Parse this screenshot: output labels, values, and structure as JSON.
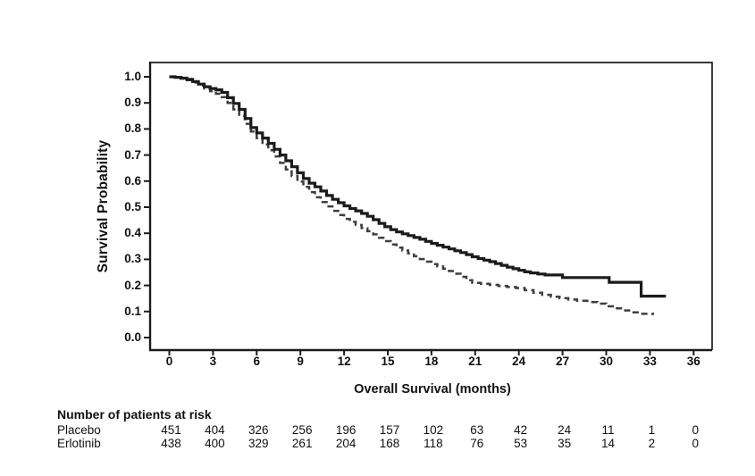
{
  "chart_data": {
    "type": "line",
    "subtype": "kaplan_meier_step",
    "title": "",
    "xlabel": "Overall Survival (months)",
    "ylabel": "Survival Probability",
    "xlim": [
      0,
      36
    ],
    "ylim": [
      0.0,
      1.0
    ],
    "grid": false,
    "legend_position": "none",
    "x_ticks": [
      0,
      3,
      6,
      9,
      12,
      15,
      18,
      21,
      24,
      27,
      30,
      33,
      36
    ],
    "x_tick_labels": [
      "0",
      "3",
      "6",
      "9",
      "12",
      "15",
      "18",
      "21",
      "24",
      "27",
      "30",
      "33",
      "36"
    ],
    "y_ticks": [
      1.0,
      0.9,
      0.8,
      0.7,
      0.6,
      0.5,
      0.4,
      0.3,
      0.2,
      0.1,
      0.0
    ],
    "y_tick_labels": [
      "1.0",
      "0.9",
      "0.8",
      "0.7",
      "0.6",
      "0.5",
      "0.4",
      "0.3",
      "0.2",
      "0.1",
      "0.0"
    ],
    "series": [
      {
        "name": "dashed-survival-curve",
        "line_style": "dashed",
        "color": "#3f3f3f",
        "x": [
          0,
          0.4,
          0.8,
          1.2,
          1.6,
          2,
          2.4,
          2.8,
          3.2,
          3.6,
          4,
          4.4,
          4.8,
          5.2,
          5.6,
          6,
          6.4,
          6.8,
          7.2,
          7.6,
          8,
          8.4,
          8.8,
          9.2,
          9.6,
          10,
          10.4,
          10.8,
          11.2,
          11.6,
          12,
          12.4,
          12.8,
          13.2,
          13.6,
          14,
          14.4,
          14.8,
          15.2,
          15.6,
          16,
          16.4,
          16.8,
          17.2,
          17.6,
          18,
          18.4,
          18.8,
          19.2,
          19.6,
          20,
          20.4,
          20.8,
          21.4,
          22,
          22.6,
          23.2,
          23.8,
          24.4,
          25,
          25.6,
          26.2,
          26.8,
          27.4,
          28,
          28.7,
          29.4,
          30,
          30.6,
          31.2,
          31.8,
          32.4,
          33.2
        ],
        "y": [
          1.0,
          0.997,
          0.993,
          0.987,
          0.978,
          0.967,
          0.955,
          0.945,
          0.935,
          0.922,
          0.9,
          0.875,
          0.85,
          0.82,
          0.79,
          0.765,
          0.74,
          0.718,
          0.695,
          0.67,
          0.645,
          0.62,
          0.598,
          0.578,
          0.558,
          0.538,
          0.52,
          0.503,
          0.486,
          0.47,
          0.455,
          0.444,
          0.432,
          0.42,
          0.408,
          0.396,
          0.383,
          0.37,
          0.357,
          0.345,
          0.334,
          0.323,
          0.312,
          0.301,
          0.291,
          0.282,
          0.273,
          0.264,
          0.255,
          0.245,
          0.233,
          0.22,
          0.21,
          0.206,
          0.202,
          0.198,
          0.194,
          0.19,
          0.182,
          0.172,
          0.164,
          0.157,
          0.151,
          0.146,
          0.141,
          0.136,
          0.13,
          0.12,
          0.112,
          0.104,
          0.097,
          0.091,
          0.086
        ]
      },
      {
        "name": "solid-survival-curve",
        "line_style": "solid",
        "color": "#1b1b1b",
        "x": [
          0,
          0.4,
          0.8,
          1.2,
          1.6,
          2,
          2.4,
          2.8,
          3.2,
          3.6,
          4,
          4.4,
          4.8,
          5.2,
          5.6,
          6,
          6.4,
          6.8,
          7.2,
          7.6,
          8,
          8.4,
          8.8,
          9.2,
          9.6,
          10,
          10.4,
          10.8,
          11.2,
          11.6,
          12,
          12.4,
          12.8,
          13.2,
          13.6,
          14,
          14.4,
          14.8,
          15.2,
          15.6,
          16,
          16.4,
          16.8,
          17.2,
          17.6,
          18,
          18.4,
          18.8,
          19.2,
          19.6,
          20,
          20.4,
          20.8,
          21.2,
          21.6,
          22,
          22.4,
          22.8,
          23.2,
          23.6,
          24,
          24.4,
          24.8,
          25.3,
          25.8,
          27,
          30.2,
          32.4,
          34.1
        ],
        "y": [
          1.0,
          0.998,
          0.995,
          0.99,
          0.982,
          0.972,
          0.962,
          0.955,
          0.95,
          0.94,
          0.92,
          0.898,
          0.875,
          0.84,
          0.805,
          0.785,
          0.765,
          0.745,
          0.722,
          0.7,
          0.678,
          0.655,
          0.632,
          0.61,
          0.592,
          0.578,
          0.562,
          0.545,
          0.53,
          0.517,
          0.505,
          0.495,
          0.486,
          0.476,
          0.465,
          0.452,
          0.438,
          0.425,
          0.414,
          0.405,
          0.398,
          0.391,
          0.384,
          0.377,
          0.369,
          0.361,
          0.354,
          0.347,
          0.34,
          0.333,
          0.326,
          0.318,
          0.31,
          0.303,
          0.297,
          0.291,
          0.284,
          0.277,
          0.27,
          0.264,
          0.258,
          0.252,
          0.248,
          0.244,
          0.24,
          0.23,
          0.212,
          0.159,
          0.159
        ]
      }
    ]
  },
  "at_risk_table": {
    "header": "Number of patients at risk",
    "months": [
      0,
      3,
      6,
      9,
      12,
      15,
      18,
      21,
      24,
      27,
      30,
      33,
      36
    ],
    "rows": [
      {
        "label": "Placebo",
        "values": [
          451,
          404,
          326,
          256,
          196,
          157,
          102,
          63,
          42,
          24,
          11,
          1,
          0
        ]
      },
      {
        "label": "Erlotinib",
        "values": [
          438,
          400,
          329,
          261,
          204,
          168,
          118,
          76,
          53,
          35,
          14,
          2,
          0
        ]
      }
    ]
  },
  "colors": {
    "solid_line": "#1b1b1b",
    "dashed_line": "#3f3f3f",
    "axis": "#1c1c1c",
    "text": "#111111",
    "background": "#ffffff"
  }
}
